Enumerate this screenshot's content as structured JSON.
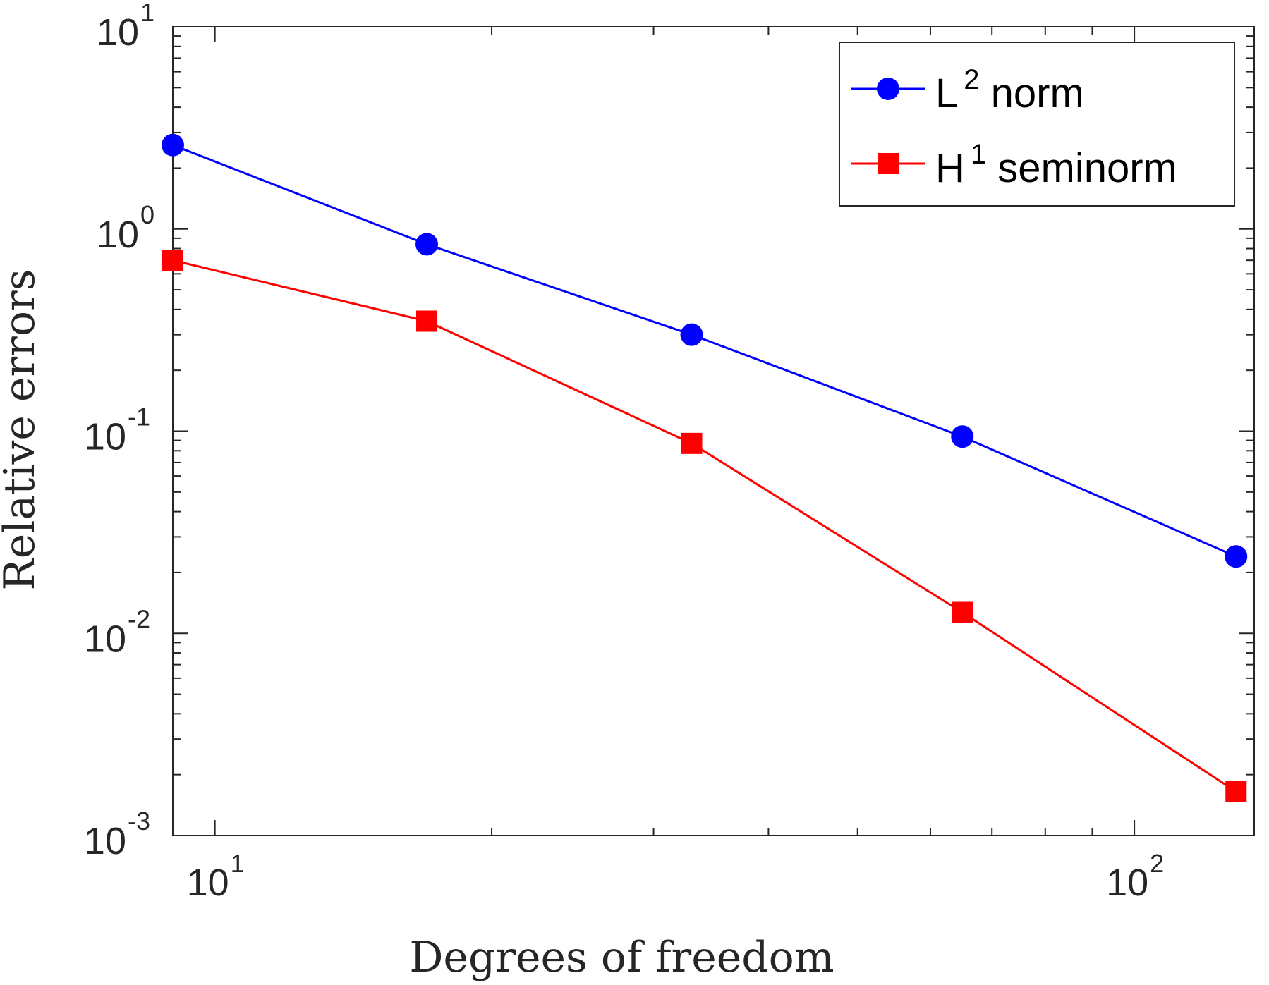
{
  "chart_data": {
    "type": "line",
    "x_scale": "log",
    "y_scale": "log",
    "xlabel": "Degrees of freedom",
    "ylabel": "Relative errors",
    "xlim": [
      9,
      135
    ],
    "ylim": [
      0.001,
      10
    ],
    "x_ticks": [
      {
        "value": 10,
        "base": "10",
        "exp": "1"
      },
      {
        "value": 100,
        "base": "10",
        "exp": "2"
      }
    ],
    "y_ticks": [
      {
        "value": 10,
        "base": "10",
        "exp": "1"
      },
      {
        "value": 1,
        "base": "10",
        "exp": "0"
      },
      {
        "value": 0.1,
        "base": "10",
        "exp": "-1"
      },
      {
        "value": 0.01,
        "base": "10",
        "exp": "-2"
      },
      {
        "value": 0.001,
        "base": "10",
        "exp": "-3"
      }
    ],
    "series": [
      {
        "name": "L² norm",
        "legend_base": "L",
        "legend_sup": "2",
        "legend_rest": " norm",
        "color": "#0000ff",
        "marker": "circle",
        "x": [
          9,
          17,
          33,
          65,
          129
        ],
        "y": [
          2.6,
          0.84,
          0.3,
          0.094,
          0.024
        ]
      },
      {
        "name": "H¹ seminorm",
        "legend_base": "H",
        "legend_sup": "1",
        "legend_rest": " seminorm",
        "color": "#ff0000",
        "marker": "square",
        "x": [
          9,
          17,
          33,
          65,
          129
        ],
        "y": [
          0.7,
          0.35,
          0.087,
          0.0127,
          0.00165
        ]
      }
    ],
    "legend_position": "top-right",
    "grid": false
  }
}
